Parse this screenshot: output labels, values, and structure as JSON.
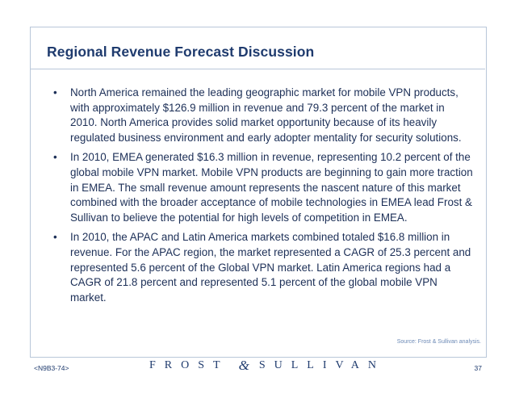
{
  "title": "Regional Revenue Forecast Discussion",
  "bullets": [
    "North America remained the leading geographic market for mobile VPN products, with approximately $126.9 million in revenue and 79.3 percent of the market in 2010. North America provides solid market opportunity because of its heavily regulated business environment and early adopter mentality for security solutions.",
    "In 2010, EMEA generated $16.3 million in revenue, representing 10.2 percent of the global mobile VPN market. Mobile VPN products are beginning to gain more traction in EMEA. The small revenue amount represents the nascent nature of this market combined with the broader acceptance of mobile technologies in EMEA lead Frost & Sullivan to believe the potential for high levels of competition in EMEA.",
    "In 2010, the APAC and Latin America markets combined totaled $16.8 million in revenue. For the APAC region, the market represented a CAGR of 25.3 percent and represented 5.6 percent of the Global VPN market. Latin America regions had a CAGR of 21.8 percent and represented 5.1 percent of the global mobile VPN market."
  ],
  "bullet_symbol": "•",
  "source_note": "Source: Frost & Sullivan analysis.",
  "footer": {
    "code": "<N9B3-74>",
    "logo_left": "FROST",
    "logo_amp": "&",
    "logo_right": "SULLIVAN",
    "page_number": "37"
  },
  "colors": {
    "title": "#1f3b6e",
    "body_text": "#1c2f57",
    "frame_border": "#b9c7d9",
    "source_text": "#6b89b6"
  }
}
